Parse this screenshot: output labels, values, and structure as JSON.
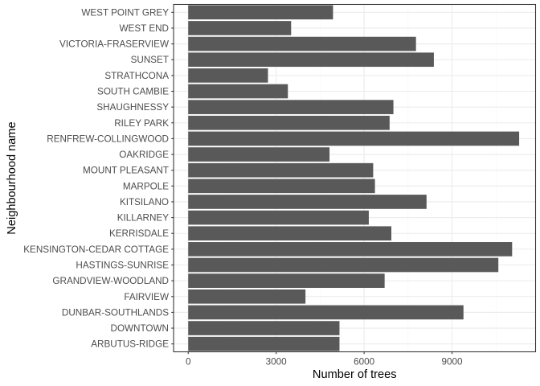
{
  "chart_data": {
    "type": "bar",
    "orientation": "horizontal",
    "title": "",
    "xlabel": "Number of trees",
    "ylabel": "Neighbourhood name",
    "categories": [
      "ARBUTUS-RIDGE",
      "DOWNTOWN",
      "DUNBAR-SOUTHLANDS",
      "FAIRVIEW",
      "GRANDVIEW-WOODLAND",
      "HASTINGS-SUNRISE",
      "KENSINGTON-CEDAR COTTAGE",
      "KERRISDALE",
      "KILLARNEY",
      "KITSILANO",
      "MARPOLE",
      "MOUNT PLEASANT",
      "OAKRIDGE",
      "RENFREW-COLLINGWOOD",
      "RILEY PARK",
      "SHAUGHNESSY",
      "SOUTH CAMBIE",
      "STRATHCONA",
      "SUNSET",
      "VICTORIA-FRASERVIEW",
      "WEST END",
      "WEST POINT GREY"
    ],
    "values": [
      5160,
      5160,
      9390,
      4000,
      6700,
      10580,
      11050,
      6930,
      6160,
      8130,
      6370,
      6310,
      4820,
      11290,
      6870,
      7000,
      3400,
      2720,
      8380,
      7770,
      3510,
      4940
    ],
    "xlim": [
      -500,
      11850
    ],
    "x_ticks": [
      0,
      3000,
      6000,
      9000
    ],
    "x_tick_labels": [
      "0",
      "3000",
      "6000",
      "9000"
    ],
    "grid": true,
    "legend": "none",
    "bar_color": "#595959",
    "grid_color": "#ebebeb",
    "minor_grid_color": "#f5f5f5"
  }
}
